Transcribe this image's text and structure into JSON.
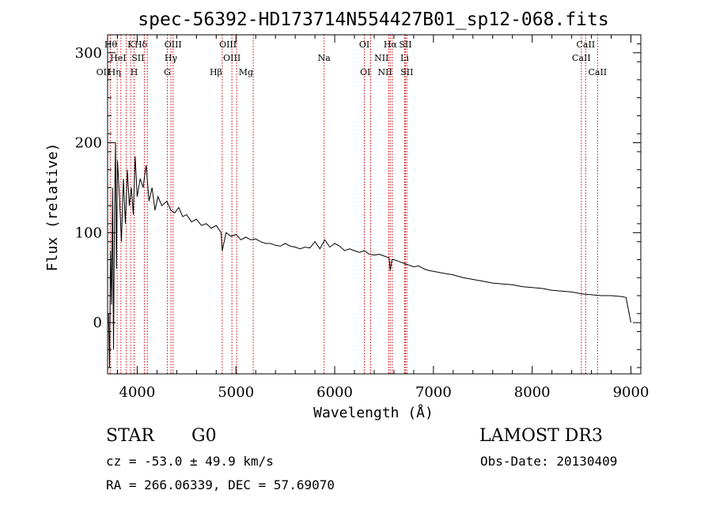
{
  "chart_data": {
    "type": "line",
    "title": "spec-56392-HD173714N554427B01_sp12-068.fits",
    "xlabel": "Wavelength (Å)",
    "ylabel": "Flux (relative)",
    "xlim": [
      3700,
      9100
    ],
    "ylim": [
      -57,
      320
    ],
    "xticks": [
      4000,
      5000,
      6000,
      7000,
      8000,
      9000
    ],
    "xtick_labels": [
      "4000",
      "5000",
      "6000",
      "7000",
      "8000",
      "9000"
    ],
    "yticks": [
      0,
      100,
      200,
      300
    ],
    "ytick_labels": [
      "0",
      "100",
      "200",
      "300"
    ],
    "series": [
      {
        "name": "flux",
        "x": [
          3710,
          3720,
          3730,
          3740,
          3750,
          3760,
          3770,
          3780,
          3790,
          3800,
          3820,
          3840,
          3860,
          3880,
          3900,
          3920,
          3940,
          3960,
          3980,
          4000,
          4030,
          4060,
          4090,
          4120,
          4150,
          4180,
          4210,
          4250,
          4300,
          4340,
          4380,
          4420,
          4460,
          4500,
          4550,
          4600,
          4650,
          4700,
          4750,
          4800,
          4850,
          4861,
          4900,
          4950,
          5000,
          5050,
          5100,
          5150,
          5200,
          5250,
          5300,
          5350,
          5400,
          5450,
          5500,
          5550,
          5600,
          5650,
          5700,
          5750,
          5800,
          5850,
          5900,
          5950,
          6000,
          6050,
          6100,
          6150,
          6200,
          6250,
          6300,
          6350,
          6400,
          6450,
          6500,
          6550,
          6563,
          6580,
          6600,
          6650,
          6700,
          6750,
          6800,
          6850,
          6900,
          6950,
          7000,
          7100,
          7200,
          7300,
          7400,
          7500,
          7600,
          7700,
          7800,
          7900,
          8000,
          8100,
          8200,
          8300,
          8400,
          8500,
          8600,
          8700,
          8800,
          8900,
          8950,
          9000
        ],
        "y": [
          10,
          -50,
          80,
          20,
          150,
          -30,
          120,
          200,
          60,
          180,
          140,
          90,
          160,
          110,
          170,
          130,
          150,
          120,
          185,
          140,
          160,
          150,
          175,
          135,
          150,
          125,
          140,
          130,
          135,
          125,
          122,
          128,
          118,
          120,
          112,
          115,
          108,
          110,
          105,
          108,
          100,
          80,
          100,
          96,
          98,
          92,
          95,
          92,
          93,
          90,
          88,
          88,
          86,
          85,
          88,
          85,
          84,
          82,
          84,
          83,
          90,
          82,
          92,
          84,
          88,
          85,
          80,
          82,
          80,
          78,
          80,
          76,
          75,
          76,
          74,
          72,
          58,
          70,
          70,
          68,
          66,
          64,
          62,
          63,
          60,
          58,
          57,
          55,
          53,
          50,
          48,
          46,
          44,
          43,
          42,
          40,
          39,
          38,
          36,
          35,
          34,
          32,
          31,
          30,
          30,
          29,
          28,
          0
        ]
      }
    ],
    "line_markers": [
      {
        "label": "OII",
        "x": 3727,
        "row": 3,
        "anchor": "end"
      },
      {
        "label": "Hθ",
        "x": 3797,
        "row": 1,
        "anchor": "end"
      },
      {
        "label": "Hη",
        "x": 3835,
        "row": 3,
        "anchor": "end"
      },
      {
        "label": "HeI",
        "x": 3889,
        "row": 2,
        "anchor": "end"
      },
      {
        "label": "K",
        "x": 3934,
        "row": 1,
        "anchor": "middle"
      },
      {
        "label": "H",
        "x": 3969,
        "row": 3,
        "anchor": "middle"
      },
      {
        "label": "SII",
        "x": 4072,
        "row": 2,
        "anchor": "end"
      },
      {
        "label": "Hδ",
        "x": 4102,
        "row": 1,
        "anchor": "end"
      },
      {
        "label": "G",
        "x": 4305,
        "row": 3,
        "anchor": "middle"
      },
      {
        "label": "Hγ",
        "x": 4341,
        "row": 2,
        "anchor": "middle"
      },
      {
        "label": "OIII",
        "x": 4363,
        "row": 1,
        "anchor": "middle"
      },
      {
        "label": "Hβ",
        "x": 4861,
        "row": 3,
        "anchor": "end"
      },
      {
        "label": "OIII",
        "x": 4959,
        "row": 2,
        "anchor": "middle"
      },
      {
        "label": "OIII",
        "x": 5007,
        "row": 1,
        "anchor": "end"
      },
      {
        "label": "Mg",
        "x": 5175,
        "row": 3,
        "anchor": "end"
      },
      {
        "label": "Na",
        "x": 5893,
        "row": 2,
        "anchor": "middle"
      },
      {
        "label": "OI",
        "x": 6300,
        "row": 1,
        "anchor": "middle"
      },
      {
        "label": "OI",
        "x": 6364,
        "row": 3,
        "anchor": "end"
      },
      {
        "label": "NII",
        "x": 6548,
        "row": 2,
        "anchor": "end"
      },
      {
        "label": "Hα",
        "x": 6563,
        "row": 1,
        "anchor": "middle"
      },
      {
        "label": "NII",
        "x": 6583,
        "row": 3,
        "anchor": "end"
      },
      {
        "label": "Li",
        "x": 6708,
        "row": 2,
        "anchor": "middle"
      },
      {
        "label": "SII",
        "x": 6716,
        "row": 1,
        "anchor": "middle"
      },
      {
        "label": "SII",
        "x": 6731,
        "row": 3,
        "anchor": "middle"
      },
      {
        "label": "CaII",
        "x": 8498,
        "row": 2,
        "anchor": "middle"
      },
      {
        "label": "CaII",
        "x": 8542,
        "row": 1,
        "anchor": "middle"
      },
      {
        "label": "CaII",
        "x": 8662,
        "row": 3,
        "anchor": "middle"
      }
    ],
    "marker_color": "#cc0000",
    "line_color": "#000000",
    "grid": false
  },
  "info": {
    "object_class": "STAR",
    "subclass": "G0",
    "survey": "LAMOST DR3",
    "redshift": "cz = -53.0 ± 49.9 km/s",
    "obs_date": "Obs-Date: 20130409",
    "coords": "RA = 266.06339, DEC =  57.69070"
  }
}
